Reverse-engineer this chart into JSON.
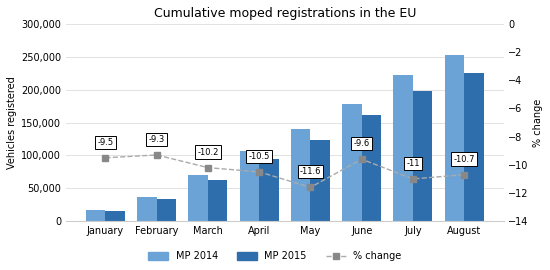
{
  "months": [
    "January",
    "February",
    "March",
    "April",
    "May",
    "June",
    "July",
    "August"
  ],
  "mp2014": [
    17000,
    37000,
    70000,
    107000,
    140000,
    178000,
    222000,
    252000
  ],
  "mp2015": [
    15000,
    33000,
    63000,
    95000,
    124000,
    161000,
    198000,
    225000
  ],
  "pct_change": [
    -9.5,
    -9.3,
    -10.2,
    -10.5,
    -11.6,
    -9.6,
    -11.0,
    -10.7
  ],
  "pct_labels": [
    "-9.5",
    "-9.3",
    "-10.2",
    "-10.5",
    "-11.6",
    "-9.6",
    "-11",
    "-10.7"
  ],
  "title": "Cumulative moped registrations in the EU",
  "ylabel_left": "Vehicles registered",
  "ylabel_right": "% change",
  "color_2014": "#6BA3D6",
  "color_2015": "#2E6EAD",
  "color_pct_line": "#AAAAAA",
  "color_pct_marker": "#888888",
  "ylim_left": [
    0,
    300000
  ],
  "ylim_right": [
    -14,
    0
  ],
  "yticks_left": [
    0,
    50000,
    100000,
    150000,
    200000,
    250000,
    300000
  ],
  "yticks_right": [
    0,
    -2,
    -4,
    -6,
    -8,
    -10,
    -12,
    -14
  ],
  "legend_labels": [
    "MP 2014",
    "MP 2015",
    "% change"
  ]
}
